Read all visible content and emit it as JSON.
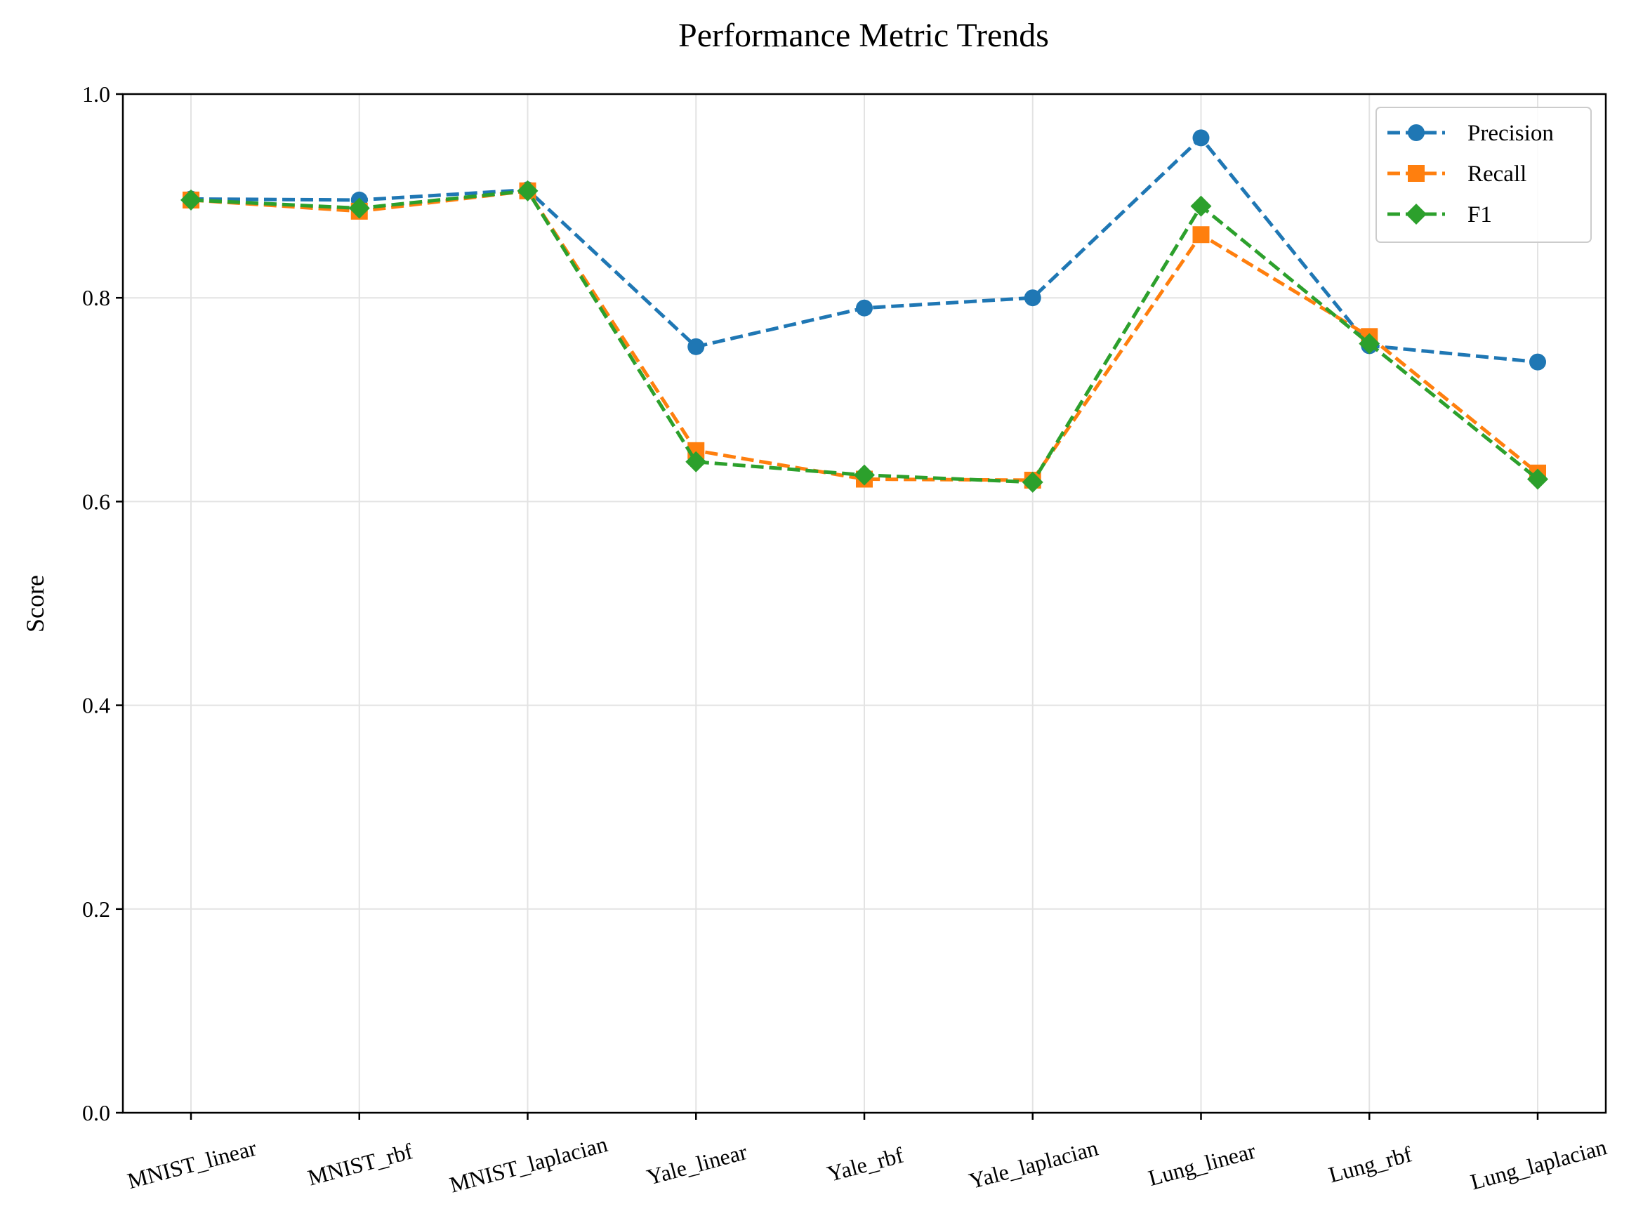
{
  "chart_data": {
    "type": "line",
    "title": "Performance Metric Trends",
    "xlabel": "",
    "ylabel": "Score",
    "ylim": [
      0.0,
      1.0
    ],
    "yticks": [
      "0.0",
      "0.2",
      "0.4",
      "0.6",
      "0.8",
      "1.0"
    ],
    "categories": [
      "MNIST_linear",
      "MNIST_rbf",
      "MNIST_laplacian",
      "Yale_linear",
      "Yale_rbf",
      "Yale_laplacian",
      "Lung_linear",
      "Lung_rbf",
      "Lung_laplacian"
    ],
    "grid": true,
    "legend_position": "top-right",
    "series": [
      {
        "name": "Precision",
        "color": "#1f77b4",
        "marker": "circle",
        "linestyle": "dashed",
        "values": [
          0.897,
          0.896,
          0.906,
          0.752,
          0.79,
          0.8,
          0.957,
          0.753,
          0.737
        ]
      },
      {
        "name": "Recall",
        "color": "#ff7f0e",
        "marker": "square",
        "linestyle": "dashed",
        "values": [
          0.896,
          0.885,
          0.905,
          0.65,
          0.622,
          0.621,
          0.862,
          0.762,
          0.628
        ]
      },
      {
        "name": "F1",
        "color": "#2ca02c",
        "marker": "diamond",
        "linestyle": "dashed",
        "values": [
          0.896,
          0.888,
          0.905,
          0.639,
          0.626,
          0.619,
          0.89,
          0.755,
          0.622
        ]
      }
    ]
  }
}
